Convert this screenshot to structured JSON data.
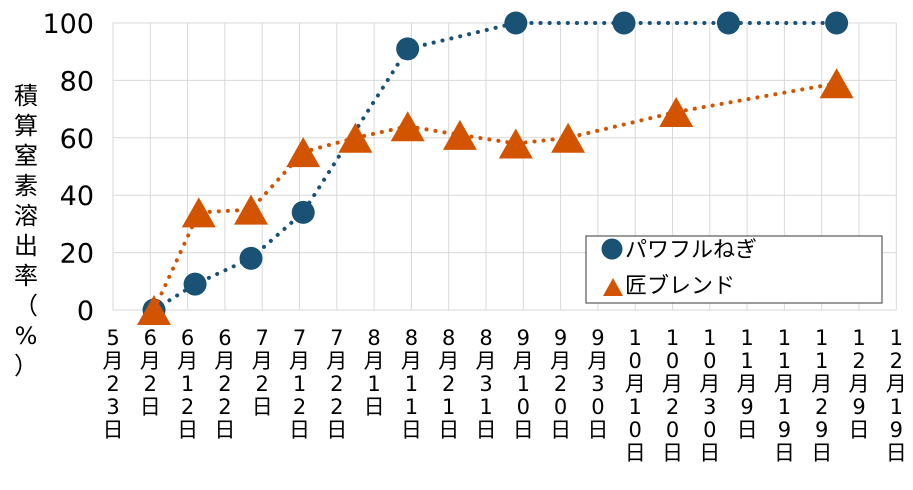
{
  "chart_data": {
    "type": "line",
    "ylabel": "積算窒素溶出率（%）",
    "xlabel": "",
    "ylim": [
      0,
      100
    ],
    "yticks": [
      0,
      20,
      40,
      60,
      80,
      100
    ],
    "grid": true,
    "legend_position": "lower-right",
    "categories": [
      "5月23日",
      "6月2日",
      "6月12日",
      "6月22日",
      "7月2日",
      "7月12日",
      "7月22日",
      "8月1日",
      "8月11日",
      "8月21日",
      "8月31日",
      "9月10日",
      "9月20日",
      "9月30日",
      "10月10日",
      "10月20日",
      "10月30日",
      "11月9日",
      "11月19日",
      "11月29日",
      "12月9日",
      "12月19日"
    ],
    "series": [
      {
        "name": "パワフルねぎ",
        "color": "#1a5276",
        "marker": "circle",
        "line_style": "dotted",
        "points": [
          {
            "x": "2024-06-03",
            "y": 0
          },
          {
            "x": "2024-06-14",
            "y": 9
          },
          {
            "x": "2024-06-29",
            "y": 18
          },
          {
            "x": "2024-07-13",
            "y": 34
          },
          {
            "x": "2024-08-10",
            "y": 91
          },
          {
            "x": "2024-09-08",
            "y": 100
          },
          {
            "x": "2024-10-07",
            "y": 100
          },
          {
            "x": "2024-11-04",
            "y": 100
          },
          {
            "x": "2024-12-03",
            "y": 100
          }
        ]
      },
      {
        "name": "匠ブレンド",
        "color": "#d35400",
        "marker": "triangle",
        "line_style": "dotted",
        "points": [
          {
            "x": "2024-06-03",
            "y": 0
          },
          {
            "x": "2024-06-15",
            "y": 34
          },
          {
            "x": "2024-06-29",
            "y": 35
          },
          {
            "x": "2024-07-13",
            "y": 55
          },
          {
            "x": "2024-07-27",
            "y": 60
          },
          {
            "x": "2024-08-10",
            "y": 64
          },
          {
            "x": "2024-08-24",
            "y": 61
          },
          {
            "x": "2024-09-08",
            "y": 58
          },
          {
            "x": "2024-09-22",
            "y": 60
          },
          {
            "x": "2024-10-21",
            "y": 69
          },
          {
            "x": "2024-12-03",
            "y": 79
          }
        ]
      }
    ]
  }
}
